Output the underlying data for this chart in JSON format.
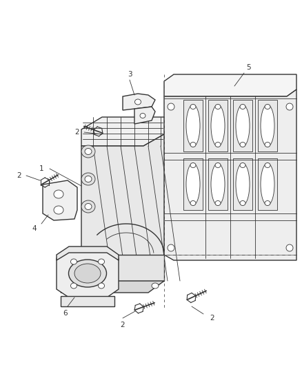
{
  "bg_color": "#ffffff",
  "line_color": "#333333",
  "label_color": "#333333",
  "fig_width": 4.38,
  "fig_height": 5.33,
  "dpi": 100,
  "label_fs": 7.5,
  "lw_main": 1.0,
  "lw_thin": 0.6
}
